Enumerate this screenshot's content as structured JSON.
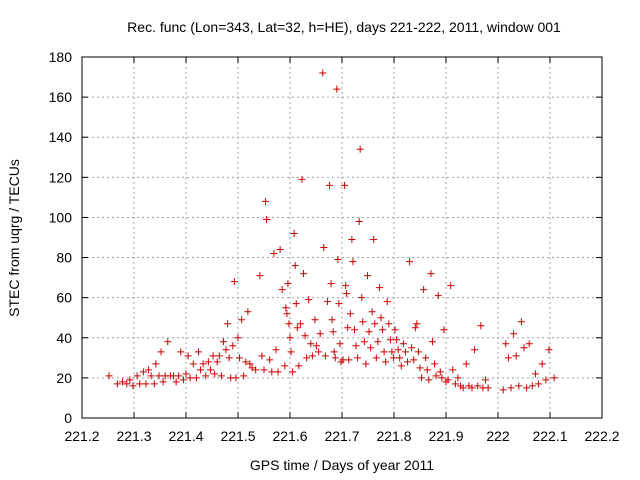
{
  "chart_data": {
    "type": "scatter",
    "title": "Rec. func (Lon=343, Lat=32, h=HE), days 221-222, 2011, window 001",
    "xlabel": "GPS time / Days of year 2011",
    "ylabel": "STEC from uqrg / TECUs",
    "xlim": [
      221.2,
      222.2
    ],
    "ylim": [
      0,
      180
    ],
    "xticks": [
      221.2,
      221.3,
      221.4,
      221.5,
      221.6,
      221.7,
      221.8,
      221.9,
      222.0,
      222.1,
      222.2
    ],
    "xtick_labels": [
      "221.2",
      "221.3",
      "221.4",
      "221.5",
      "221.6",
      "221.7",
      "221.8",
      "221.9",
      "222",
      "222.1",
      "222.2"
    ],
    "yticks": [
      0,
      20,
      40,
      60,
      80,
      100,
      120,
      140,
      160,
      180
    ],
    "ytick_labels": [
      "0",
      "20",
      "40",
      "60",
      "80",
      "100",
      "120",
      "140",
      "160",
      "180"
    ],
    "grid": true,
    "marker": "+",
    "color": "#cc0000",
    "points": [
      [
        221.252,
        21
      ],
      [
        221.268,
        17
      ],
      [
        221.278,
        18
      ],
      [
        221.286,
        17
      ],
      [
        221.292,
        19
      ],
      [
        221.298,
        16
      ],
      [
        221.306,
        21
      ],
      [
        221.311,
        17
      ],
      [
        221.318,
        23
      ],
      [
        221.323,
        17
      ],
      [
        221.328,
        24
      ],
      [
        221.333,
        21
      ],
      [
        221.339,
        17
      ],
      [
        221.342,
        27
      ],
      [
        221.348,
        21
      ],
      [
        221.352,
        33
      ],
      [
        221.356,
        18
      ],
      [
        221.36,
        21
      ],
      [
        221.365,
        38
      ],
      [
        221.37,
        21
      ],
      [
        221.376,
        21
      ],
      [
        221.381,
        18
      ],
      [
        221.386,
        21
      ],
      [
        221.39,
        33
      ],
      [
        221.395,
        19
      ],
      [
        221.4,
        22
      ],
      [
        221.404,
        31
      ],
      [
        221.408,
        20
      ],
      [
        221.414,
        27
      ],
      [
        221.42,
        20
      ],
      [
        221.424,
        33
      ],
      [
        221.428,
        24
      ],
      [
        221.433,
        27
      ],
      [
        221.438,
        21
      ],
      [
        221.443,
        28
      ],
      [
        221.447,
        24
      ],
      [
        221.452,
        31
      ],
      [
        221.455,
        22
      ],
      [
        221.46,
        28
      ],
      [
        221.464,
        31
      ],
      [
        221.468,
        21
      ],
      [
        221.472,
        38
      ],
      [
        221.477,
        34
      ],
      [
        221.48,
        47
      ],
      [
        221.483,
        30
      ],
      [
        221.486,
        20
      ],
      [
        221.49,
        36
      ],
      [
        221.493,
        68
      ],
      [
        221.496,
        20
      ],
      [
        221.5,
        40
      ],
      [
        221.503,
        30
      ],
      [
        221.507,
        49
      ],
      [
        221.511,
        21
      ],
      [
        221.515,
        28
      ],
      [
        221.519,
        53
      ],
      [
        221.523,
        27
      ],
      [
        221.527,
        25
      ],
      [
        221.534,
        24
      ],
      [
        221.542,
        71
      ],
      [
        221.546,
        31
      ],
      [
        221.55,
        24
      ],
      [
        221.553,
        108
      ],
      [
        221.555,
        99
      ],
      [
        221.561,
        29
      ],
      [
        221.565,
        23
      ],
      [
        221.569,
        82
      ],
      [
        221.573,
        34
      ],
      [
        221.577,
        23
      ],
      [
        221.581,
        84
      ],
      [
        221.585,
        64
      ],
      [
        221.59,
        26
      ],
      [
        221.592,
        55
      ],
      [
        221.594,
        52
      ],
      [
        221.596,
        67
      ],
      [
        221.598,
        47
      ],
      [
        221.6,
        40
      ],
      [
        221.602,
        33
      ],
      [
        221.605,
        23
      ],
      [
        221.608,
        92
      ],
      [
        221.61,
        76
      ],
      [
        221.612,
        57
      ],
      [
        221.614,
        45
      ],
      [
        221.617,
        26
      ],
      [
        221.62,
        47
      ],
      [
        221.623,
        119
      ],
      [
        221.626,
        72
      ],
      [
        221.629,
        41
      ],
      [
        221.632,
        30
      ],
      [
        221.636,
        59
      ],
      [
        221.64,
        37
      ],
      [
        221.643,
        31
      ],
      [
        221.648,
        49
      ],
      [
        221.651,
        36
      ],
      [
        221.655,
        33
      ],
      [
        221.658,
        42
      ],
      [
        221.663,
        172
      ],
      [
        221.665,
        85
      ],
      [
        221.668,
        31
      ],
      [
        221.672,
        58
      ],
      [
        221.676,
        116
      ],
      [
        221.679,
        67
      ],
      [
        221.681,
        49
      ],
      [
        221.683,
        43
      ],
      [
        221.685,
        33
      ],
      [
        221.687,
        30
      ],
      [
        221.69,
        164
      ],
      [
        221.692,
        79
      ],
      [
        221.694,
        57
      ],
      [
        221.696,
        37
      ],
      [
        221.698,
        28
      ],
      [
        221.702,
        29
      ],
      [
        221.705,
        116
      ],
      [
        221.707,
        66
      ],
      [
        221.709,
        62
      ],
      [
        221.711,
        45
      ],
      [
        221.713,
        29
      ],
      [
        221.716,
        52
      ],
      [
        221.719,
        89
      ],
      [
        221.721,
        78
      ],
      [
        221.724,
        44
      ],
      [
        221.727,
        36
      ],
      [
        221.73,
        30
      ],
      [
        221.733,
        98
      ],
      [
        221.735,
        134
      ],
      [
        221.738,
        60
      ],
      [
        221.74,
        48
      ],
      [
        221.743,
        38
      ],
      [
        221.746,
        27
      ],
      [
        221.749,
        71
      ],
      [
        221.752,
        43
      ],
      [
        221.755,
        35
      ],
      [
        221.758,
        53
      ],
      [
        221.761,
        89
      ],
      [
        221.763,
        47
      ],
      [
        221.766,
        30
      ],
      [
        221.769,
        38
      ],
      [
        221.772,
        65
      ],
      [
        221.775,
        50
      ],
      [
        221.778,
        44
      ],
      [
        221.781,
        33
      ],
      [
        221.784,
        28
      ],
      [
        221.787,
        58
      ],
      [
        221.79,
        47
      ],
      [
        221.793,
        39
      ],
      [
        221.796,
        33
      ],
      [
        221.799,
        30
      ],
      [
        221.802,
        44
      ],
      [
        221.805,
        39
      ],
      [
        221.808,
        34
      ],
      [
        221.811,
        30
      ],
      [
        221.814,
        26
      ],
      [
        221.818,
        37
      ],
      [
        221.822,
        33
      ],
      [
        221.826,
        28
      ],
      [
        221.83,
        78
      ],
      [
        221.834,
        35
      ],
      [
        221.838,
        29
      ],
      [
        221.841,
        45
      ],
      [
        221.844,
        47
      ],
      [
        221.847,
        33
      ],
      [
        221.85,
        25
      ],
      [
        221.853,
        20
      ],
      [
        221.857,
        64
      ],
      [
        221.861,
        30
      ],
      [
        221.864,
        24
      ],
      [
        221.867,
        19
      ],
      [
        221.871,
        72
      ],
      [
        221.874,
        38
      ],
      [
        221.878,
        27
      ],
      [
        221.881,
        21
      ],
      [
        221.885,
        61
      ],
      [
        221.889,
        23
      ],
      [
        221.892,
        20
      ],
      [
        221.896,
        44
      ],
      [
        221.9,
        18
      ],
      [
        221.904,
        19
      ],
      [
        221.909,
        66
      ],
      [
        221.913,
        24
      ],
      [
        221.918,
        17
      ],
      [
        221.923,
        20
      ],
      [
        221.928,
        16
      ],
      [
        221.933,
        15
      ],
      [
        221.939,
        27
      ],
      [
        221.944,
        16
      ],
      [
        221.95,
        15
      ],
      [
        221.955,
        34
      ],
      [
        221.961,
        16
      ],
      [
        221.967,
        46
      ],
      [
        221.971,
        15
      ],
      [
        221.976,
        19
      ],
      [
        221.981,
        15
      ],
      [
        222.01,
        14
      ],
      [
        222.015,
        37
      ],
      [
        222.02,
        30
      ],
      [
        222.025,
        15
      ],
      [
        222.03,
        42
      ],
      [
        222.035,
        31
      ],
      [
        222.04,
        16
      ],
      [
        222.045,
        48
      ],
      [
        222.05,
        35
      ],
      [
        222.055,
        15
      ],
      [
        222.06,
        37
      ],
      [
        222.066,
        16
      ],
      [
        222.072,
        22
      ],
      [
        222.078,
        17
      ],
      [
        222.085,
        27
      ],
      [
        222.092,
        19
      ],
      [
        222.098,
        34
      ],
      [
        222.108,
        20
      ]
    ]
  }
}
